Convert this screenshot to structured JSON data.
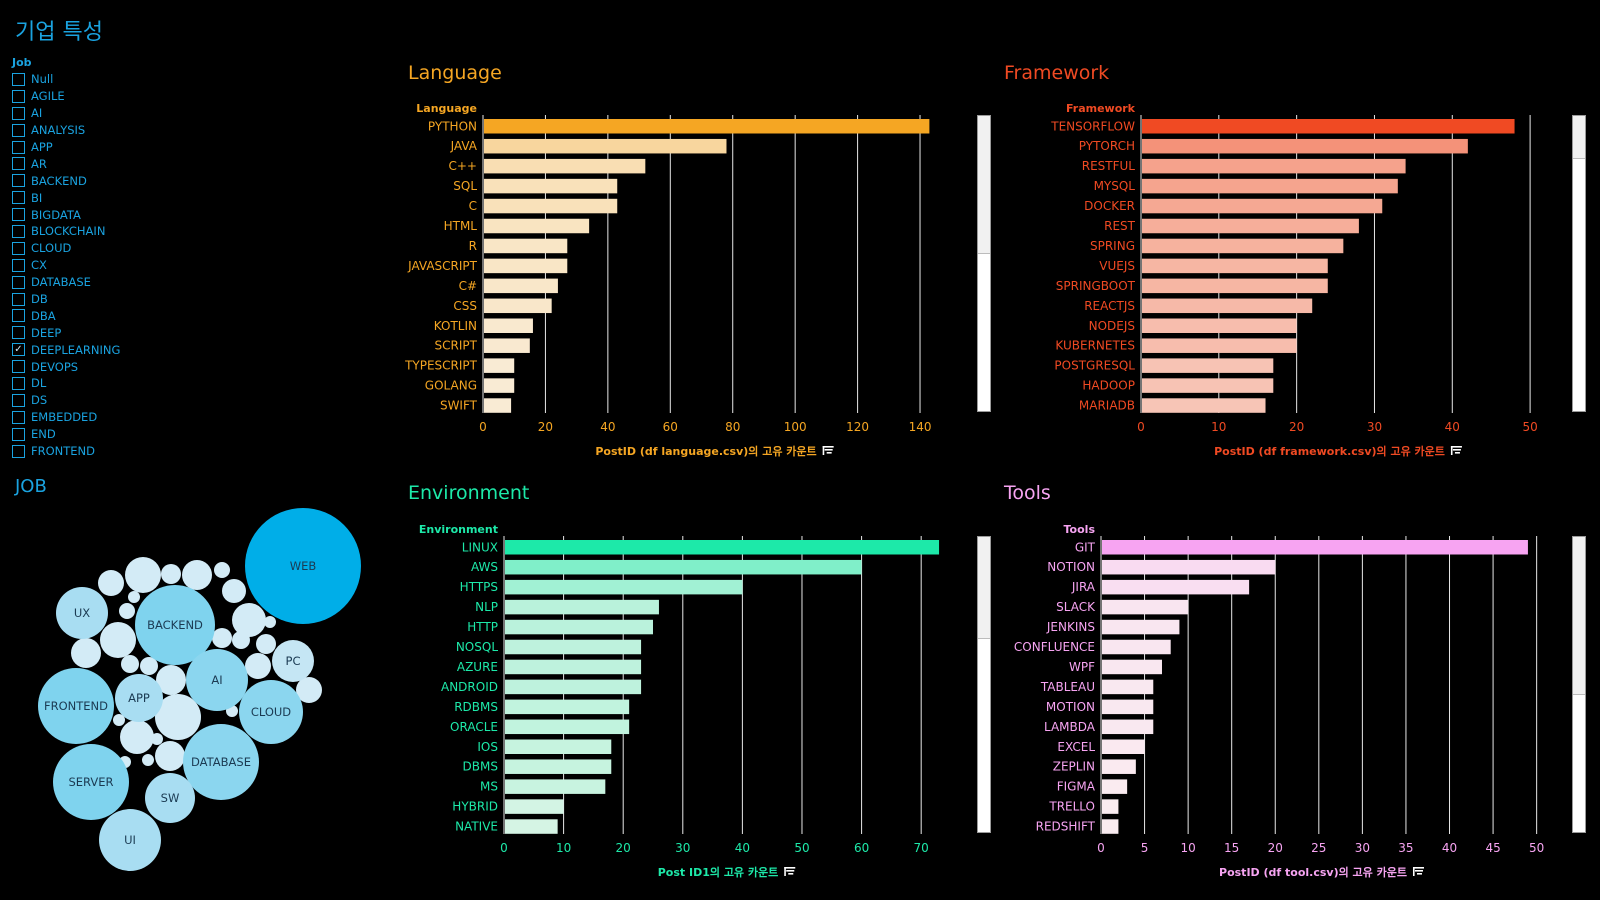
{
  "page": {
    "title": "기업 특성"
  },
  "filter": {
    "title": "Job",
    "items": [
      {
        "label": "Null",
        "checked": false
      },
      {
        "label": "AGILE",
        "checked": false
      },
      {
        "label": "AI",
        "checked": false
      },
      {
        "label": "ANALYSIS",
        "checked": false
      },
      {
        "label": "APP",
        "checked": false
      },
      {
        "label": "AR",
        "checked": false
      },
      {
        "label": "BACKEND",
        "checked": false
      },
      {
        "label": "BI",
        "checked": false
      },
      {
        "label": "BIGDATA",
        "checked": false
      },
      {
        "label": "BLOCKCHAIN",
        "checked": false
      },
      {
        "label": "CLOUD",
        "checked": false
      },
      {
        "label": "CX",
        "checked": false
      },
      {
        "label": "DATABASE",
        "checked": false
      },
      {
        "label": "DB",
        "checked": false
      },
      {
        "label": "DBA",
        "checked": false
      },
      {
        "label": "DEEP",
        "checked": false
      },
      {
        "label": "DEEPLEARNING",
        "checked": true
      },
      {
        "label": "DEVOPS",
        "checked": false
      },
      {
        "label": "DL",
        "checked": false
      },
      {
        "label": "DS",
        "checked": false
      },
      {
        "label": "EMBEDDED",
        "checked": false
      },
      {
        "label": "END",
        "checked": false
      },
      {
        "label": "FRONTEND",
        "checked": false
      }
    ]
  },
  "job": {
    "title": "JOB",
    "bubble_labels": [
      "WEB",
      "BACKEND",
      "UX",
      "FRONTEND",
      "APP",
      "AI",
      "CLOUD",
      "PC",
      "SERVER",
      "DATABASE",
      "SW",
      "UI"
    ]
  },
  "chart_data": [
    {
      "id": "language",
      "type": "bar",
      "title": "Language",
      "category_header": "Language",
      "color": "#f5a623",
      "categories": [
        "PYTHON",
        "JAVA",
        "C++",
        "SQL",
        "C",
        "HTML",
        "R",
        "JAVASCRIPT",
        "C#",
        "CSS",
        "KOTLIN",
        "SCRIPT",
        "TYPESCRIPT",
        "GOLANG",
        "SWIFT"
      ],
      "values": [
        143,
        78,
        52,
        43,
        43,
        34,
        27,
        27,
        24,
        22,
        16,
        15,
        10,
        10,
        9
      ],
      "ticks": [
        0,
        20,
        40,
        60,
        80,
        100,
        120,
        140
      ],
      "xlim": [
        0,
        148
      ],
      "xlabel": "PostID (df language.csv)의 고유 카운트"
    },
    {
      "id": "framework",
      "type": "bar",
      "title": "Framework",
      "category_header": "Framework",
      "color": "#f04a23",
      "categories": [
        "TENSORFLOW",
        "PYTORCH",
        "RESTFUL",
        "MYSQL",
        "DOCKER",
        "REST",
        "SPRING",
        "VUEJS",
        "SPRINGBOOT",
        "REACTJS",
        "NODEJS",
        "KUBERNETES",
        "POSTGRESQL",
        "HADOOP",
        "MARIADB"
      ],
      "values": [
        48,
        42,
        34,
        33,
        31,
        28,
        26,
        24,
        24,
        22,
        20,
        20,
        17,
        17,
        16
      ],
      "ticks": [
        0,
        10,
        20,
        30,
        40,
        50
      ],
      "xlim": [
        0,
        50.5
      ],
      "xlabel": "PostID (df framework.csv)의 고유 카운트"
    },
    {
      "id": "environment",
      "type": "bar",
      "title": "Environment",
      "category_header": "Environment",
      "color": "#1de9a9",
      "categories": [
        "LINUX",
        "AWS",
        "HTTPS",
        "NLP",
        "HTTP",
        "NOSQL",
        "AZURE",
        "ANDROID",
        "RDBMS",
        "ORACLE",
        "IOS",
        "DBMS",
        "MS",
        "HYBRID",
        "NATIVE"
      ],
      "values": [
        73,
        60,
        40,
        26,
        25,
        23,
        23,
        23,
        21,
        21,
        18,
        18,
        17,
        10,
        9
      ],
      "ticks": [
        0,
        10,
        20,
        30,
        40,
        50,
        60,
        70
      ],
      "xlim": [
        0,
        74.5
      ],
      "xlabel": "Post ID1의 고유 카운트"
    },
    {
      "id": "tools",
      "type": "bar",
      "title": "Tools",
      "category_header": "Tools",
      "color": "#f7a4f2",
      "categories": [
        "GIT",
        "NOTION",
        "JIRA",
        "SLACK",
        "JENKINS",
        "CONFLUENCE",
        "WPF",
        "TABLEAU",
        "MOTION",
        "LAMBDA",
        "EXCEL",
        "ZEPLIN",
        "FIGMA",
        "TRELLO",
        "REDSHIFT"
      ],
      "values": [
        49,
        20,
        17,
        10,
        9,
        8,
        7,
        6,
        6,
        6,
        5,
        4,
        3,
        2,
        2
      ],
      "ticks": [
        0,
        5,
        10,
        15,
        20,
        25,
        30,
        35,
        40,
        45,
        50
      ],
      "xlim": [
        0,
        50.5
      ],
      "xlabel": "PostID (df tool.csv)의 고유 카운트"
    }
  ]
}
